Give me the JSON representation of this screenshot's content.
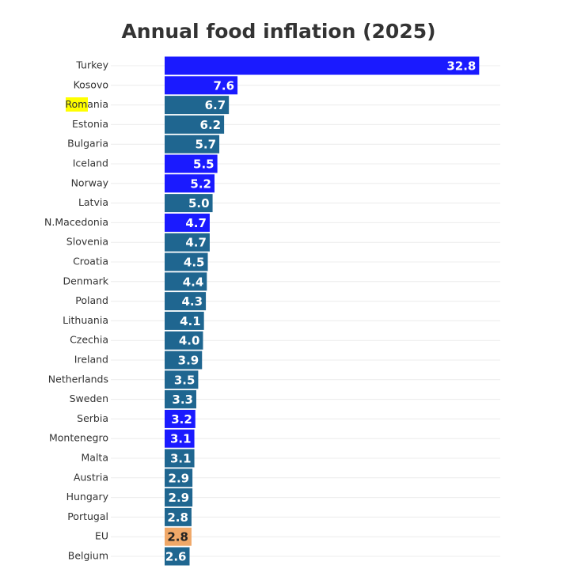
{
  "chart_data": {
    "type": "hbar",
    "title": "Annual food inflation (2025)",
    "categories": [
      "Turkey",
      "Kosovo",
      "Romania",
      "Estonia",
      "Bulgaria",
      "Iceland",
      "Norway",
      "Latvia",
      "N.Macedonia",
      "Slovenia",
      "Croatia",
      "Denmark",
      "Poland",
      "Lithuania",
      "Czechia",
      "Ireland",
      "Netherlands",
      "Sweden",
      "Serbia",
      "Montenegro",
      "Malta",
      "Austria",
      "Hungary",
      "Portugal",
      "EU",
      "Belgium"
    ],
    "values": [
      32.8,
      7.6,
      6.7,
      6.2,
      5.7,
      5.5,
      5.2,
      5.0,
      4.7,
      4.7,
      4.5,
      4.4,
      4.3,
      4.1,
      4.0,
      3.9,
      3.5,
      3.3,
      3.2,
      3.1,
      3.1,
      2.9,
      2.9,
      2.8,
      2.8,
      2.6
    ],
    "value_labels": [
      "32.8",
      "7.6",
      "6.7",
      "6.2",
      "5.7",
      "5.5",
      "5.2",
      "5.0",
      "4.7",
      "4.7",
      "4.5",
      "4.4",
      "4.3",
      "4.1",
      "4.0",
      "3.9",
      "3.5",
      "3.3",
      "3.2",
      "3.1",
      "3.1",
      "2.9",
      "2.9",
      "2.8",
      "2.8",
      "2.6"
    ],
    "colors": [
      "#1a1aff",
      "#1a1aff",
      "#1f6690",
      "#1f6690",
      "#1f6690",
      "#1a1aff",
      "#1a1aff",
      "#1f6690",
      "#1a1aff",
      "#1f6690",
      "#1f6690",
      "#1f6690",
      "#1f6690",
      "#1f6690",
      "#1f6690",
      "#1f6690",
      "#1f6690",
      "#1f6690",
      "#1a1aff",
      "#1a1aff",
      "#1f6690",
      "#1f6690",
      "#1f6690",
      "#1f6690",
      "#f0a868",
      "#1f6690"
    ],
    "xlim": [
      0,
      35
    ],
    "grid": true
  }
}
